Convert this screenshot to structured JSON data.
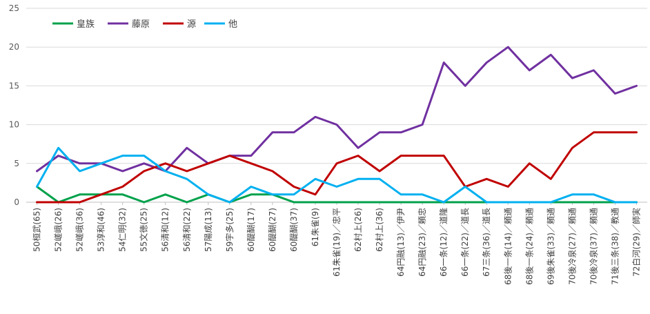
{
  "chart_data": {
    "type": "line",
    "title": "",
    "xlabel": "",
    "ylabel": "",
    "ylim": [
      0,
      25
    ],
    "yticks": [
      "0",
      "5",
      "10",
      "15",
      "20",
      "25"
    ],
    "grid": true,
    "legend_position": "top-left",
    "categories": [
      "50桓武(65)",
      "52嵯峨(26)",
      "52嵯峨(36)",
      "53淳和(46)",
      "54仁明(32)",
      "55文徳(25)",
      "56清和(12)",
      "56清和(22)",
      "57陽成(13)",
      "59宇多(25)",
      "60醍醐(17)",
      "60醍醐(27)",
      "60醍醐(37)",
      "61朱雀(9)",
      "61朱雀(19)／忠平",
      "62村上(26)",
      "62村上(36)",
      "64円融(13)／伊尹",
      "64円融(23)／頼忠",
      "66一条(12)／道隆",
      "66一条(22)／道長",
      "67三条(36)／道長",
      "68後一条(14)／頼通",
      "68後一条(24)／頼通",
      "69後朱雀(33)／頼通",
      "70後冷泉(27)／頼通",
      "70後冷泉(37)／頼通",
      "71後三条(38)／教通",
      "72白河(29)／師実"
    ],
    "series": [
      {
        "name": "皇族",
        "color": "#00a14b",
        "values": [
          2,
          0,
          1,
          1,
          1,
          0,
          1,
          0,
          1,
          0,
          1,
          1,
          0,
          0,
          0,
          0,
          0,
          0,
          0,
          0,
          0,
          0,
          0,
          0,
          0,
          0,
          0,
          0,
          0
        ]
      },
      {
        "name": "藤原",
        "color": "#7030a0",
        "values": [
          4,
          6,
          5,
          5,
          4,
          5,
          4,
          7,
          5,
          6,
          6,
          9,
          9,
          11,
          10,
          7,
          9,
          9,
          10,
          18,
          15,
          18,
          20,
          17,
          19,
          16,
          17,
          14,
          15
        ]
      },
      {
        "name": "源",
        "color": "#c00000",
        "values": [
          0,
          0,
          0,
          1,
          2,
          4,
          5,
          4,
          5,
          6,
          5,
          4,
          2,
          1,
          5,
          6,
          4,
          6,
          6,
          6,
          2,
          3,
          2,
          5,
          3,
          7,
          9,
          9,
          9
        ]
      },
      {
        "name": "他",
        "color": "#00b0f0",
        "values": [
          2,
          7,
          4,
          5,
          6,
          6,
          4,
          3,
          1,
          0,
          2,
          1,
          1,
          3,
          2,
          3,
          3,
          1,
          1,
          0,
          2,
          0,
          0,
          0,
          0,
          1,
          1,
          0,
          0
        ]
      }
    ]
  }
}
